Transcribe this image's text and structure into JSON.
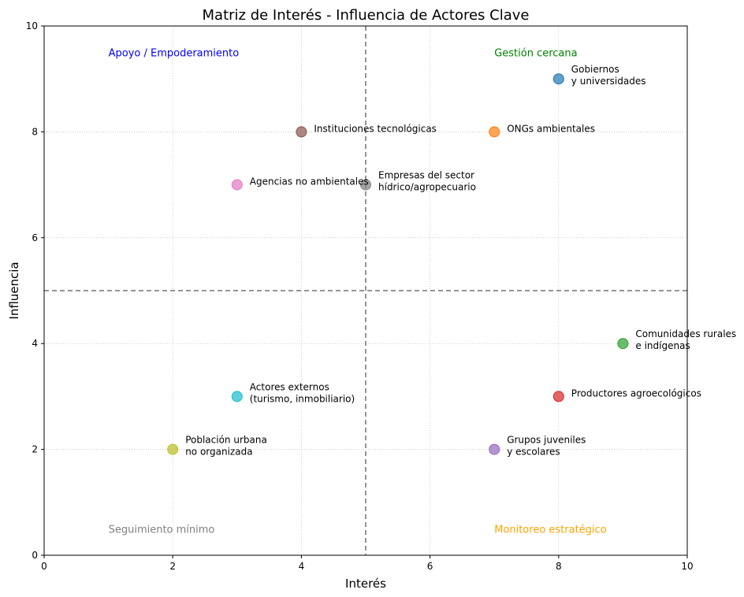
{
  "chart_data": {
    "type": "scatter",
    "title": "Matriz de Interés - Influencia de Actores Clave",
    "xlabel": "Interés",
    "ylabel": "Influencia",
    "xlim": [
      0,
      10
    ],
    "ylim": [
      0,
      10
    ],
    "xticks": [
      "0",
      "2",
      "4",
      "6",
      "8",
      "10"
    ],
    "yticks": [
      "0",
      "2",
      "4",
      "6",
      "8",
      "10"
    ],
    "grid": "dotted",
    "threshold_lines": {
      "x": 5,
      "y": 5
    },
    "quadrant_labels": [
      {
        "text": "Apoyo / Empoderamiento",
        "x": 1,
        "y": 9.5,
        "color": "#0000ff"
      },
      {
        "text": "Gestión cercana",
        "x": 7,
        "y": 9.5,
        "color": "#008000"
      },
      {
        "text": "Seguimiento mínimo",
        "x": 1,
        "y": 0.5,
        "color": "#808080"
      },
      {
        "text": "Monitoreo estratégico",
        "x": 7,
        "y": 0.5,
        "color": "#ffa500"
      }
    ],
    "points": [
      {
        "label": [
          "Gobiernos",
          "y universidades"
        ],
        "x": 8,
        "y": 9,
        "color": "#1f77b4"
      },
      {
        "label": [
          "ONGs ambientales"
        ],
        "x": 7,
        "y": 8,
        "color": "#ff7f0e"
      },
      {
        "label": [
          "Comunidades rurales",
          "e indígenas"
        ],
        "x": 9,
        "y": 4,
        "color": "#2ca02c"
      },
      {
        "label": [
          "Productores agroecológicos"
        ],
        "x": 8,
        "y": 3,
        "color": "#d62728"
      },
      {
        "label": [
          "Grupos juveniles",
          "y escolares"
        ],
        "x": 7,
        "y": 2,
        "color": "#9467bd"
      },
      {
        "label": [
          "Instituciones tecnológicas"
        ],
        "x": 4,
        "y": 8,
        "color": "#8c564b"
      },
      {
        "label": [
          "Agencias no ambientales"
        ],
        "x": 3,
        "y": 7,
        "color": "#e377c2"
      },
      {
        "label": [
          "Empresas del sector",
          "hídrico/agropecuario"
        ],
        "x": 5,
        "y": 7,
        "color": "#7f7f7f"
      },
      {
        "label": [
          "Población urbana",
          "no organizada"
        ],
        "x": 2,
        "y": 2,
        "color": "#bcbd22"
      },
      {
        "label": [
          "Actores externos",
          "(turismo, inmobiliario)"
        ],
        "x": 3,
        "y": 3,
        "color": "#17becf"
      }
    ]
  }
}
